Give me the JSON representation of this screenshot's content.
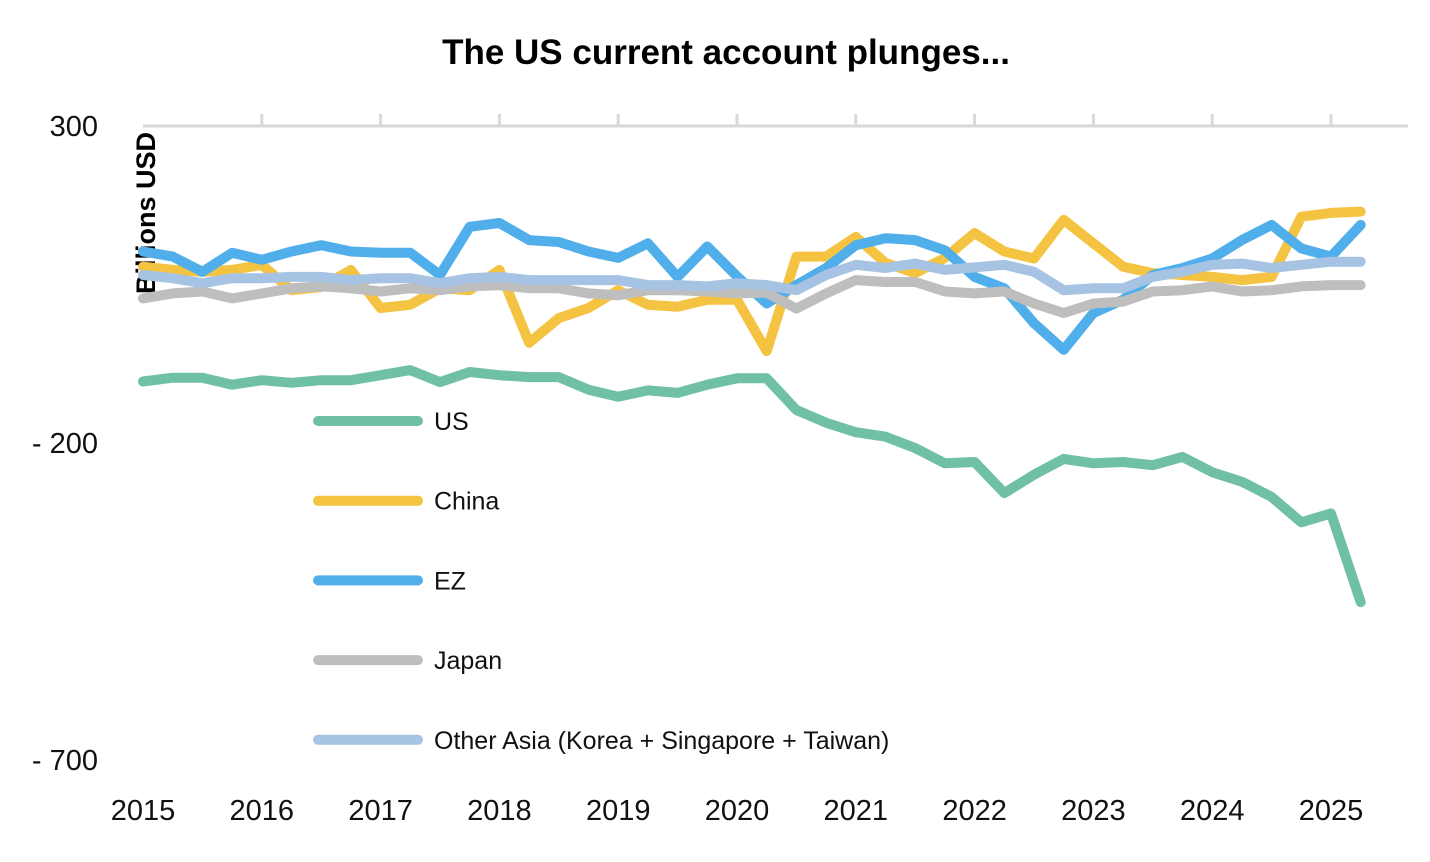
{
  "chart_data": {
    "type": "line",
    "title": "The US current account plunges...",
    "ylabel": "Billions USD",
    "xlabel": "",
    "ylim": [
      -700,
      300
    ],
    "y_ticks": [
      300,
      -200,
      -700
    ],
    "y_tick_labels": [
      "300",
      "- 200",
      "- 700"
    ],
    "x_tick_labels": [
      "2015",
      "2016",
      "2017",
      "2018",
      "2019",
      "2020",
      "2021",
      "2022",
      "2023",
      "2024",
      "2025"
    ],
    "x_frequency": "quarterly, 2015 Q1 to 2025 Q2",
    "grid": false,
    "legend_position": "bottom-left inside plot",
    "series": [
      {
        "name": "US",
        "color": "#70bfa7",
        "values": [
          -103,
          -97,
          -97,
          -108,
          -101,
          -105,
          -101,
          -101,
          -93,
          -85,
          -104,
          -88,
          -93,
          -96,
          -96,
          -116,
          -127,
          -117,
          -121,
          -108,
          -98,
          -98,
          -148,
          -168,
          -183,
          -190,
          -208,
          -232,
          -230,
          -279,
          -250,
          -225,
          -232,
          -230,
          -235,
          -222,
          -246,
          -261,
          -285,
          -325,
          -311,
          -451
        ]
      },
      {
        "name": "China",
        "color": "#f5c342",
        "values": [
          78,
          73,
          70,
          73,
          81,
          41,
          46,
          73,
          13,
          18,
          44,
          41,
          73,
          -42,
          -3,
          13,
          41,
          18,
          15,
          26,
          26,
          -55,
          94,
          94,
          125,
          84,
          68,
          92,
          131,
          102,
          91,
          152,
          115,
          78,
          68,
          65,
          62,
          57,
          62,
          157,
          163,
          165
        ]
      },
      {
        "name": "EZ",
        "color": "#50aeea",
        "values": [
          102,
          94,
          70,
          100,
          89,
          102,
          112,
          102,
          100,
          100,
          65,
          141,
          147,
          120,
          117,
          102,
          92,
          115,
          62,
          110,
          63,
          20,
          49,
          76,
          112,
          123,
          120,
          104,
          62,
          44,
          -11,
          -53,
          5,
          26,
          65,
          76,
          91,
          120,
          144,
          107,
          94,
          144
        ]
      },
      {
        "name": "Japan",
        "color": "#bebebe",
        "values": [
          28,
          36,
          39,
          28,
          36,
          44,
          47,
          44,
          39,
          44,
          41,
          47,
          49,
          44,
          44,
          36,
          33,
          41,
          41,
          39,
          36,
          37,
          12,
          36,
          57,
          54,
          54,
          39,
          36,
          39,
          20,
          5,
          20,
          23,
          39,
          41,
          47,
          39,
          41,
          47,
          49,
          49
        ]
      },
      {
        "name": "Other Asia (Korea + Singapore + Taiwan)",
        "color": "#a6c3e3",
        "values": [
          65,
          60,
          52,
          60,
          60,
          62,
          62,
          57,
          60,
          60,
          52,
          60,
          62,
          57,
          57,
          57,
          57,
          49,
          49,
          47,
          52,
          49,
          41,
          65,
          81,
          76,
          83,
          73,
          77,
          81,
          70,
          41,
          44,
          44,
          62,
          70,
          81,
          83,
          76,
          81,
          86,
          86
        ]
      }
    ]
  }
}
